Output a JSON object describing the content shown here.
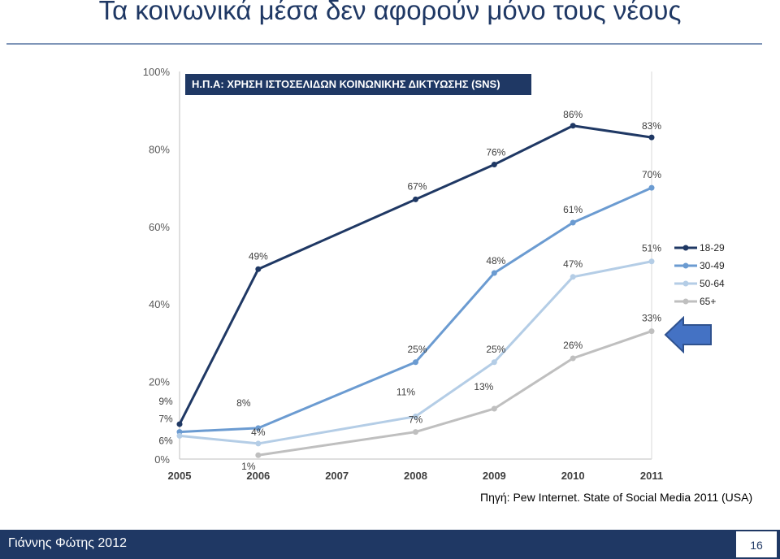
{
  "slide": {
    "title": "Τα κοινωνικά μέσα δεν αφορούν μόνο τους νέους",
    "source": "Πηγή: Pew Internet. State of Social Media 2011 (USA)",
    "footer_author": "Γιάννης Φώτης 2012",
    "page_number": "16",
    "arrow_icon": "left-arrow-icon",
    "colors": {
      "title": "#1f3864",
      "footer": "#1f3864",
      "arrow": "#4472c4"
    }
  },
  "chart_data": {
    "type": "line",
    "title": "Η.Π.Α: ΧΡΗΣΗ ΙΣΤΟΣΕΛΙΔΩΝ ΚΟΙΝΩΝΙΚΗΣ ΔΙΚΤΥΩΣΗΣ (SNS)",
    "x": [
      "2005",
      "2006",
      "2007",
      "2008",
      "2009",
      "2010",
      "2011"
    ],
    "ylim": [
      0,
      100
    ],
    "y_ticks": [
      "0%",
      "20%",
      "40%",
      "60%",
      "80%",
      "100%"
    ],
    "grid": false,
    "legend_position": "right",
    "series": [
      {
        "name": "18-29",
        "color": "#1f3864",
        "points": [
          [
            2005,
            9
          ],
          [
            2006,
            49
          ],
          [
            2008,
            67
          ],
          [
            2009,
            76
          ],
          [
            2010,
            86
          ],
          [
            2011,
            83
          ]
        ],
        "labels": [
          "9%",
          "49%",
          "67%",
          "76%",
          "86%",
          "83%"
        ]
      },
      {
        "name": "30-49",
        "color": "#6b9bd1",
        "points": [
          [
            2005,
            7
          ],
          [
            2006,
            8
          ],
          [
            2008,
            25
          ],
          [
            2009,
            48
          ],
          [
            2010,
            61
          ],
          [
            2011,
            70
          ]
        ],
        "labels": [
          "7%",
          "8%",
          "25%",
          "48%",
          "61%",
          "70%"
        ]
      },
      {
        "name": "50-64",
        "color": "#b4cde6",
        "points": [
          [
            2005,
            6
          ],
          [
            2006,
            4
          ],
          [
            2008,
            11
          ],
          [
            2009,
            25
          ],
          [
            2010,
            47
          ],
          [
            2011,
            51
          ]
        ],
        "labels": [
          "6%",
          "4%",
          "11%",
          "25%",
          "47%",
          "51%"
        ]
      },
      {
        "name": "65+",
        "color": "#bfbfbf",
        "points": [
          [
            2006,
            1
          ],
          [
            2008,
            7
          ],
          [
            2009,
            13
          ],
          [
            2010,
            26
          ],
          [
            2011,
            33
          ]
        ],
        "labels": [
          "1%",
          "7%",
          "13%",
          "26%",
          "33%"
        ]
      }
    ]
  }
}
